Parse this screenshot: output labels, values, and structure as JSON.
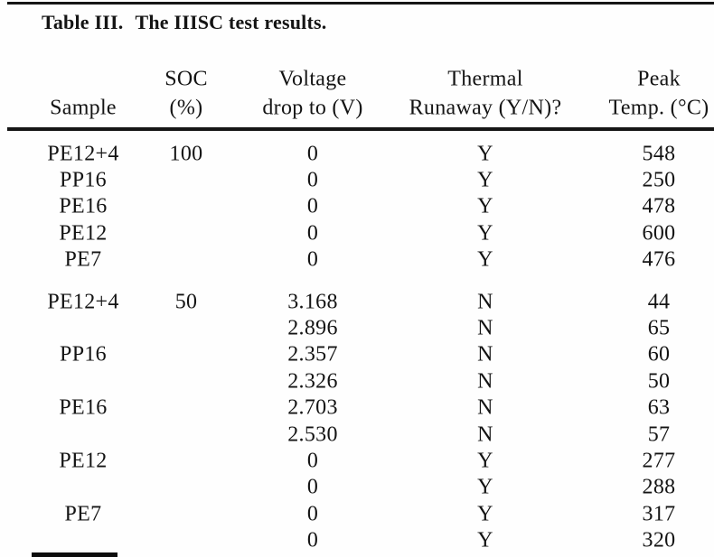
{
  "title": {
    "label": "Table III.",
    "text": "The IIISC test results."
  },
  "table": {
    "columns": [
      {
        "line1": "",
        "line2": "Sample"
      },
      {
        "line1": "SOC",
        "line2": "(%)"
      },
      {
        "line1": "Voltage",
        "line2": "drop to (V)"
      },
      {
        "line1": "Thermal",
        "line2": "Runaway (Y/N)?"
      },
      {
        "line1": "Peak",
        "line2": "Temp. (°C)"
      }
    ],
    "groups": [
      {
        "soc_level": "100",
        "rows": [
          {
            "sample": "PE12+4",
            "soc": "100",
            "voltage": "0",
            "runaway": "Y",
            "temp": "548"
          },
          {
            "sample": "PP16",
            "soc": "",
            "voltage": "0",
            "runaway": "Y",
            "temp": "250"
          },
          {
            "sample": "PE16",
            "soc": "",
            "voltage": "0",
            "runaway": "Y",
            "temp": "478"
          },
          {
            "sample": "PE12",
            "soc": "",
            "voltage": "0",
            "runaway": "Y",
            "temp": "600"
          },
          {
            "sample": "PE7",
            "soc": "",
            "voltage": "0",
            "runaway": "Y",
            "temp": "476"
          }
        ]
      },
      {
        "soc_level": "50",
        "rows": [
          {
            "sample": "PE12+4",
            "soc": "50",
            "voltage": "3.168",
            "runaway": "N",
            "temp": "44"
          },
          {
            "sample": "",
            "soc": "",
            "voltage": "2.896",
            "runaway": "N",
            "temp": "65"
          },
          {
            "sample": "PP16",
            "soc": "",
            "voltage": "2.357",
            "runaway": "N",
            "temp": "60"
          },
          {
            "sample": "",
            "soc": "",
            "voltage": "2.326",
            "runaway": "N",
            "temp": "50"
          },
          {
            "sample": "PE16",
            "soc": "",
            "voltage": "2.703",
            "runaway": "N",
            "temp": "63"
          },
          {
            "sample": "",
            "soc": "",
            "voltage": "2.530",
            "runaway": "N",
            "temp": "57"
          },
          {
            "sample": "PE12",
            "soc": "",
            "voltage": "0",
            "runaway": "Y",
            "temp": "277"
          },
          {
            "sample": "",
            "soc": "",
            "voltage": "0",
            "runaway": "Y",
            "temp": "288"
          },
          {
            "sample": "PE7",
            "soc": "",
            "voltage": "0",
            "runaway": "Y",
            "temp": "317"
          },
          {
            "sample": "",
            "soc": "",
            "voltage": "0",
            "runaway": "Y",
            "temp": "320"
          }
        ]
      }
    ]
  },
  "colors": {
    "text": "#141414",
    "rule": "#161616",
    "background": "#fefefe"
  }
}
